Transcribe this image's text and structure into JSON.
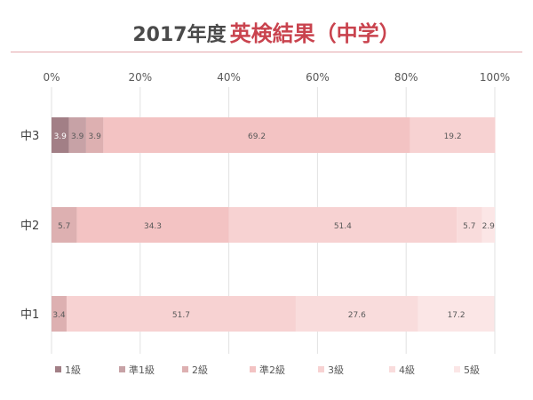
{
  "chart_data": {
    "type": "bar",
    "orientation": "horizontal",
    "stacked": true,
    "percent": true,
    "title_prefix": "2017年度",
    "title": "英検結果（中学）",
    "categories": [
      "中3",
      "中2",
      "中1"
    ],
    "xlim": [
      0,
      100
    ],
    "xticks": [
      "0%",
      "20%",
      "40%",
      "60%",
      "80%",
      "100%"
    ],
    "grid": true,
    "legend_position": "bottom",
    "series": [
      {
        "name": "1級",
        "color": "#a27f86",
        "values": [
          3.9,
          0,
          0
        ]
      },
      {
        "name": "準1級",
        "color": "#c7a2a6",
        "values": [
          3.9,
          0,
          0
        ]
      },
      {
        "name": "2級",
        "color": "#ddb0b1",
        "values": [
          3.9,
          5.7,
          3.4
        ]
      },
      {
        "name": "準2級",
        "color": "#f3c3c3",
        "values": [
          69.2,
          34.3,
          0
        ]
      },
      {
        "name": "3級",
        "color": "#f7d2d2",
        "values": [
          19.2,
          51.4,
          51.7
        ]
      },
      {
        "name": "4級",
        "color": "#f9dcdc",
        "values": [
          0,
          5.7,
          27.6
        ]
      },
      {
        "name": "5級",
        "color": "#fbe6e6",
        "values": [
          0,
          2.9,
          17.2
        ]
      }
    ]
  }
}
